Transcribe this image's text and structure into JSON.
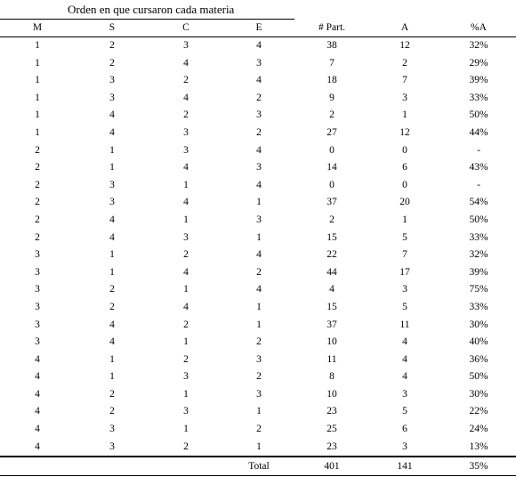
{
  "group_title": "Orden en que cursaron cada materia",
  "columns": [
    "M",
    "S",
    "C",
    "E",
    "# Part.",
    "A",
    "%A"
  ],
  "rows": [
    [
      "1",
      "2",
      "3",
      "4",
      "38",
      "12",
      "32%"
    ],
    [
      "1",
      "2",
      "4",
      "3",
      "7",
      "2",
      "29%"
    ],
    [
      "1",
      "3",
      "2",
      "4",
      "18",
      "7",
      "39%"
    ],
    [
      "1",
      "3",
      "4",
      "2",
      "9",
      "3",
      "33%"
    ],
    [
      "1",
      "4",
      "2",
      "3",
      "2",
      "1",
      "50%"
    ],
    [
      "1",
      "4",
      "3",
      "2",
      "27",
      "12",
      "44%"
    ],
    [
      "2",
      "1",
      "3",
      "4",
      "0",
      "0",
      "-"
    ],
    [
      "2",
      "1",
      "4",
      "3",
      "14",
      "6",
      "43%"
    ],
    [
      "2",
      "3",
      "1",
      "4",
      "0",
      "0",
      "-"
    ],
    [
      "2",
      "3",
      "4",
      "1",
      "37",
      "20",
      "54%"
    ],
    [
      "2",
      "4",
      "1",
      "3",
      "2",
      "1",
      "50%"
    ],
    [
      "2",
      "4",
      "3",
      "1",
      "15",
      "5",
      "33%"
    ],
    [
      "3",
      "1",
      "2",
      "4",
      "22",
      "7",
      "32%"
    ],
    [
      "3",
      "1",
      "4",
      "2",
      "44",
      "17",
      "39%"
    ],
    [
      "3",
      "2",
      "1",
      "4",
      "4",
      "3",
      "75%"
    ],
    [
      "3",
      "2",
      "4",
      "1",
      "15",
      "5",
      "33%"
    ],
    [
      "3",
      "4",
      "2",
      "1",
      "37",
      "11",
      "30%"
    ],
    [
      "3",
      "4",
      "1",
      "2",
      "10",
      "4",
      "40%"
    ],
    [
      "4",
      "1",
      "2",
      "3",
      "11",
      "4",
      "36%"
    ],
    [
      "4",
      "1",
      "3",
      "2",
      "8",
      "4",
      "50%"
    ],
    [
      "4",
      "2",
      "1",
      "3",
      "10",
      "3",
      "30%"
    ],
    [
      "4",
      "2",
      "3",
      "1",
      "23",
      "5",
      "22%"
    ],
    [
      "4",
      "3",
      "1",
      "2",
      "25",
      "6",
      "24%"
    ],
    [
      "4",
      "3",
      "2",
      "1",
      "23",
      "3",
      "13%"
    ]
  ],
  "total": {
    "label": "Total",
    "participants": "401",
    "approved": "141",
    "percent": "35%"
  }
}
